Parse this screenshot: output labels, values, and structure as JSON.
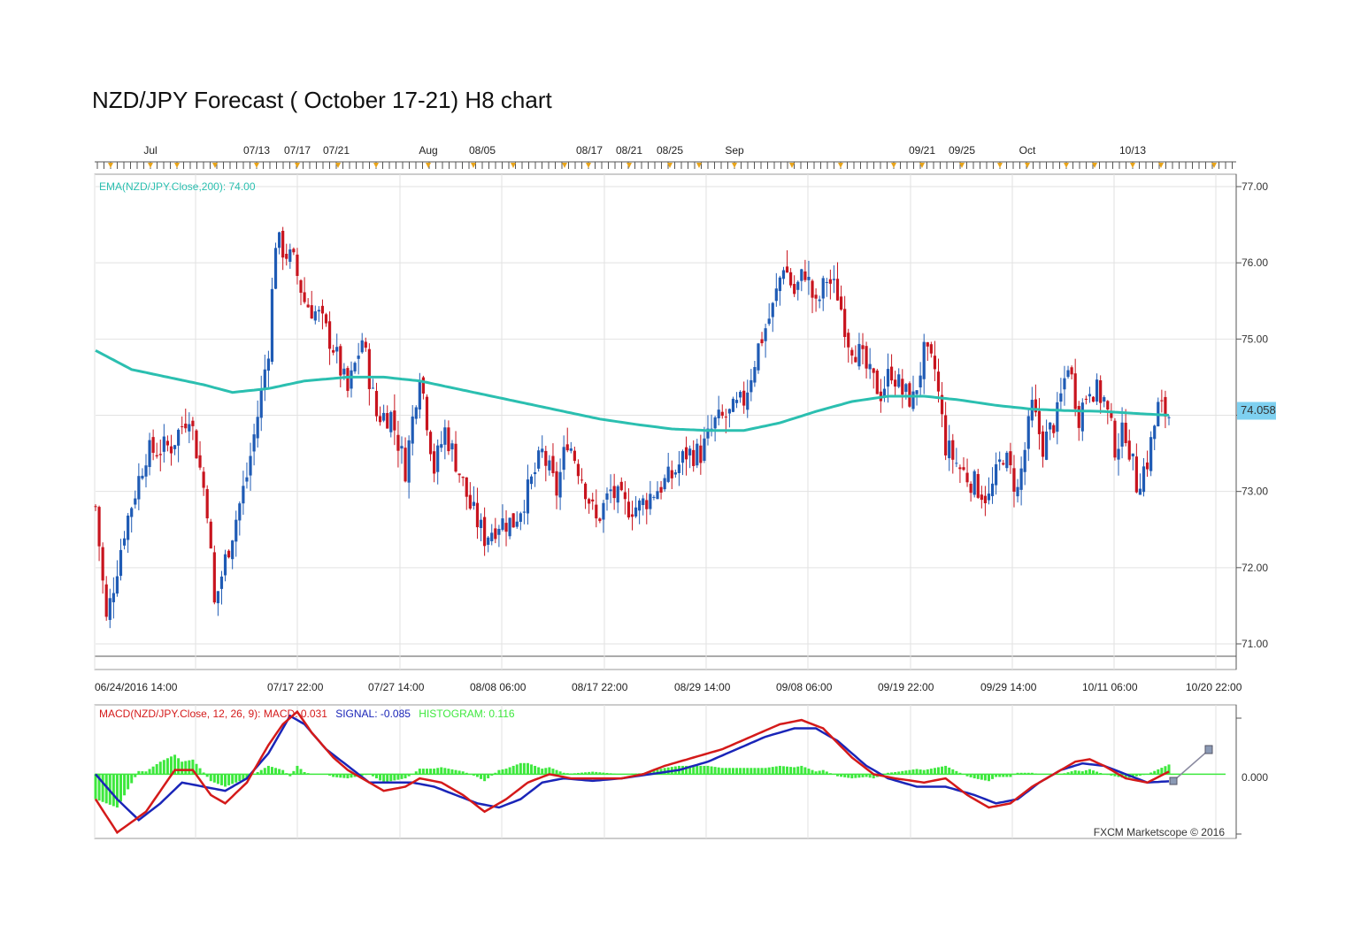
{
  "title": "NZD/JPY Forecast ( October 17-21) H8 chart",
  "watermark": "FXCM Marketscope © 2016",
  "top_axis_labels": [
    "Jul",
    "07/13",
    "07/17",
    "07/21",
    "Aug",
    "08/05",
    "08/17",
    "08/21",
    "08/25",
    "Sep",
    "09/21",
    "09/25",
    "Oct",
    "10/13"
  ],
  "bottom_axis_labels": [
    "06/24/2016 14:00",
    "07/17 22:00",
    "07/27 14:00",
    "08/08 06:00",
    "08/17 22:00",
    "08/29 14:00",
    "09/08 06:00",
    "09/19 22:00",
    "09/29 14:00",
    "10/11 06:00",
    "10/20 22:00"
  ],
  "price_ticks": [
    "77.00",
    "76.00",
    "75.00",
    "74.00",
    "73.00",
    "72.00",
    "71.00"
  ],
  "current_price": "74.058",
  "ema_label": "EMA(NZD/JPY.Close,200): 74.00",
  "macd_legend": {
    "macd_part": "MACD(NZD/JPY.Close, 12, 26, 9): MACD: 0.031",
    "signal_part": "SIGNAL: -0.085",
    "hist_part": "HISTOGRAM: 0.116"
  },
  "macd_zero_label": "0.000",
  "colors": {
    "bull": "#1f5bb5",
    "bear": "#c8141e",
    "ema": "#2bbfb0",
    "macd": "#d41a1a",
    "signal": "#1a25b8",
    "hist": "#3ee83e",
    "grid": "#e2e2e2",
    "price_tag": "#7ed0f0"
  },
  "chart_data": [
    {
      "type": "candlestick",
      "title": "NZD/JPY Forecast ( October 17-21) H8 chart",
      "ylim": [
        70.8,
        77.1
      ],
      "x_range": [
        "06/24/2016 14:00",
        "10/20 22:00"
      ],
      "grid": true,
      "close_anchors": [
        [
          0,
          72.8
        ],
        [
          3,
          71.3
        ],
        [
          8,
          72.5
        ],
        [
          14,
          73.5
        ],
        [
          21,
          73.6
        ],
        [
          26,
          74.05
        ],
        [
          31,
          72.8
        ],
        [
          33,
          71.5
        ],
        [
          36,
          72.1
        ],
        [
          42,
          73.2
        ],
        [
          45,
          74.0
        ],
        [
          48,
          74.9
        ],
        [
          50,
          76.3
        ],
        [
          55,
          76.0
        ],
        [
          58,
          75.5
        ],
        [
          62,
          75.3
        ],
        [
          66,
          74.9
        ],
        [
          70,
          74.3
        ],
        [
          74,
          75.0
        ],
        [
          78,
          74.0
        ],
        [
          82,
          74.0
        ],
        [
          86,
          73.3
        ],
        [
          90,
          74.6
        ],
        [
          94,
          73.3
        ],
        [
          97,
          73.8
        ],
        [
          100,
          73.4
        ],
        [
          104,
          72.8
        ],
        [
          108,
          72.4
        ],
        [
          112,
          72.6
        ],
        [
          116,
          72.6
        ],
        [
          120,
          73.0
        ],
        [
          124,
          73.5
        ],
        [
          128,
          73.0
        ],
        [
          131,
          73.7
        ],
        [
          135,
          73.2
        ],
        [
          139,
          72.6
        ],
        [
          143,
          73.0
        ],
        [
          147,
          72.8
        ],
        [
          151,
          72.8
        ],
        [
          155,
          73.0
        ],
        [
          160,
          73.2
        ],
        [
          164,
          73.5
        ],
        [
          168,
          73.5
        ],
        [
          172,
          73.9
        ],
        [
          176,
          74.0
        ],
        [
          180,
          74.2
        ],
        [
          184,
          74.9
        ],
        [
          188,
          75.4
        ],
        [
          191,
          76.0
        ],
        [
          194,
          75.6
        ],
        [
          197,
          75.9
        ],
        [
          200,
          75.4
        ],
        [
          203,
          75.8
        ],
        [
          206,
          75.6
        ],
        [
          209,
          75.0
        ],
        [
          212,
          74.8
        ],
        [
          215,
          74.5
        ],
        [
          218,
          74.3
        ],
        [
          221,
          74.6
        ],
        [
          224,
          74.3
        ],
        [
          227,
          74.2
        ],
        [
          230,
          74.8
        ],
        [
          233,
          74.6
        ],
        [
          236,
          73.6
        ],
        [
          240,
          73.3
        ],
        [
          244,
          73.1
        ],
        [
          248,
          72.9
        ],
        [
          252,
          73.5
        ],
        [
          256,
          73.0
        ],
        [
          260,
          74.1
        ],
        [
          263,
          73.6
        ],
        [
          267,
          74.0
        ],
        [
          270,
          74.7
        ],
        [
          273,
          74.0
        ],
        [
          276,
          74.4
        ],
        [
          280,
          74.2
        ],
        [
          283,
          73.6
        ],
        [
          286,
          73.8
        ],
        [
          289,
          73.1
        ],
        [
          292,
          73.4
        ],
        [
          295,
          74.1
        ],
        [
          298,
          74.0
        ]
      ],
      "ema200": [
        [
          0,
          74.85
        ],
        [
          10,
          74.6
        ],
        [
          20,
          74.5
        ],
        [
          30,
          74.4
        ],
        [
          38,
          74.3
        ],
        [
          48,
          74.35
        ],
        [
          58,
          74.45
        ],
        [
          70,
          74.5
        ],
        [
          80,
          74.5
        ],
        [
          90,
          74.45
        ],
        [
          100,
          74.35
        ],
        [
          110,
          74.25
        ],
        [
          120,
          74.15
        ],
        [
          130,
          74.05
        ],
        [
          140,
          73.95
        ],
        [
          150,
          73.88
        ],
        [
          160,
          73.82
        ],
        [
          170,
          73.8
        ],
        [
          180,
          73.8
        ],
        [
          190,
          73.9
        ],
        [
          200,
          74.05
        ],
        [
          210,
          74.18
        ],
        [
          220,
          74.25
        ],
        [
          230,
          74.25
        ],
        [
          240,
          74.2
        ],
        [
          250,
          74.13
        ],
        [
          260,
          74.08
        ],
        [
          270,
          74.06
        ],
        [
          280,
          74.05
        ],
        [
          290,
          74.02
        ],
        [
          298,
          74.0
        ]
      ],
      "ema_value": 74.0,
      "last_price": 74.058
    },
    {
      "type": "line",
      "title": "MACD(NZD/JPY.Close, 12, 26, 9)",
      "ylim": [
        -0.75,
        0.8
      ],
      "series": [
        {
          "name": "MACD",
          "value": 0.031,
          "values": [
            [
              0,
              -0.3
            ],
            [
              6,
              -0.7
            ],
            [
              14,
              -0.45
            ],
            [
              22,
              0.05
            ],
            [
              27,
              0.05
            ],
            [
              32,
              -0.25
            ],
            [
              36,
              -0.35
            ],
            [
              42,
              -0.1
            ],
            [
              48,
              0.35
            ],
            [
              52,
              0.6
            ],
            [
              56,
              0.75
            ],
            [
              60,
              0.5
            ],
            [
              66,
              0.2
            ],
            [
              70,
              0.05
            ],
            [
              76,
              -0.1
            ],
            [
              80,
              -0.2
            ],
            [
              86,
              -0.15
            ],
            [
              90,
              -0.05
            ],
            [
              96,
              -0.1
            ],
            [
              102,
              -0.25
            ],
            [
              108,
              -0.45
            ],
            [
              114,
              -0.3
            ],
            [
              120,
              -0.1
            ],
            [
              126,
              0.0
            ],
            [
              132,
              -0.05
            ],
            [
              140,
              -0.05
            ],
            [
              146,
              -0.05
            ],
            [
              152,
              0.0
            ],
            [
              158,
              0.1
            ],
            [
              166,
              0.2
            ],
            [
              174,
              0.3
            ],
            [
              182,
              0.45
            ],
            [
              190,
              0.6
            ],
            [
              196,
              0.65
            ],
            [
              202,
              0.55
            ],
            [
              210,
              0.2
            ],
            [
              216,
              0.0
            ],
            [
              222,
              -0.05
            ],
            [
              230,
              -0.1
            ],
            [
              236,
              -0.05
            ],
            [
              242,
              -0.25
            ],
            [
              248,
              -0.4
            ],
            [
              254,
              -0.35
            ],
            [
              260,
              -0.15
            ],
            [
              266,
              0.0
            ],
            [
              272,
              0.15
            ],
            [
              276,
              0.18
            ],
            [
              280,
              0.1
            ],
            [
              286,
              -0.05
            ],
            [
              292,
              -0.1
            ],
            [
              298,
              0.031
            ]
          ]
        },
        {
          "name": "SIGNAL",
          "value": -0.085,
          "values": [
            [
              0,
              0.0
            ],
            [
              6,
              -0.3
            ],
            [
              12,
              -0.55
            ],
            [
              18,
              -0.35
            ],
            [
              24,
              -0.1
            ],
            [
              30,
              -0.15
            ],
            [
              36,
              -0.2
            ],
            [
              42,
              -0.05
            ],
            [
              48,
              0.25
            ],
            [
              54,
              0.7
            ],
            [
              58,
              0.6
            ],
            [
              64,
              0.3
            ],
            [
              70,
              0.1
            ],
            [
              76,
              -0.1
            ],
            [
              82,
              -0.1
            ],
            [
              88,
              -0.1
            ],
            [
              94,
              -0.15
            ],
            [
              100,
              -0.25
            ],
            [
              106,
              -0.35
            ],
            [
              112,
              -0.4
            ],
            [
              118,
              -0.3
            ],
            [
              124,
              -0.1
            ],
            [
              130,
              -0.05
            ],
            [
              138,
              -0.08
            ],
            [
              146,
              -0.05
            ],
            [
              154,
              0.0
            ],
            [
              162,
              0.05
            ],
            [
              170,
              0.15
            ],
            [
              178,
              0.3
            ],
            [
              186,
              0.45
            ],
            [
              194,
              0.55
            ],
            [
              200,
              0.55
            ],
            [
              206,
              0.4
            ],
            [
              214,
              0.1
            ],
            [
              220,
              -0.05
            ],
            [
              228,
              -0.15
            ],
            [
              236,
              -0.15
            ],
            [
              244,
              -0.25
            ],
            [
              250,
              -0.35
            ],
            [
              256,
              -0.3
            ],
            [
              262,
              -0.1
            ],
            [
              268,
              0.05
            ],
            [
              274,
              0.13
            ],
            [
              280,
              0.1
            ],
            [
              286,
              0.0
            ],
            [
              292,
              -0.1
            ],
            [
              298,
              -0.085
            ]
          ]
        }
      ],
      "histogram_value": 0.116
    }
  ]
}
